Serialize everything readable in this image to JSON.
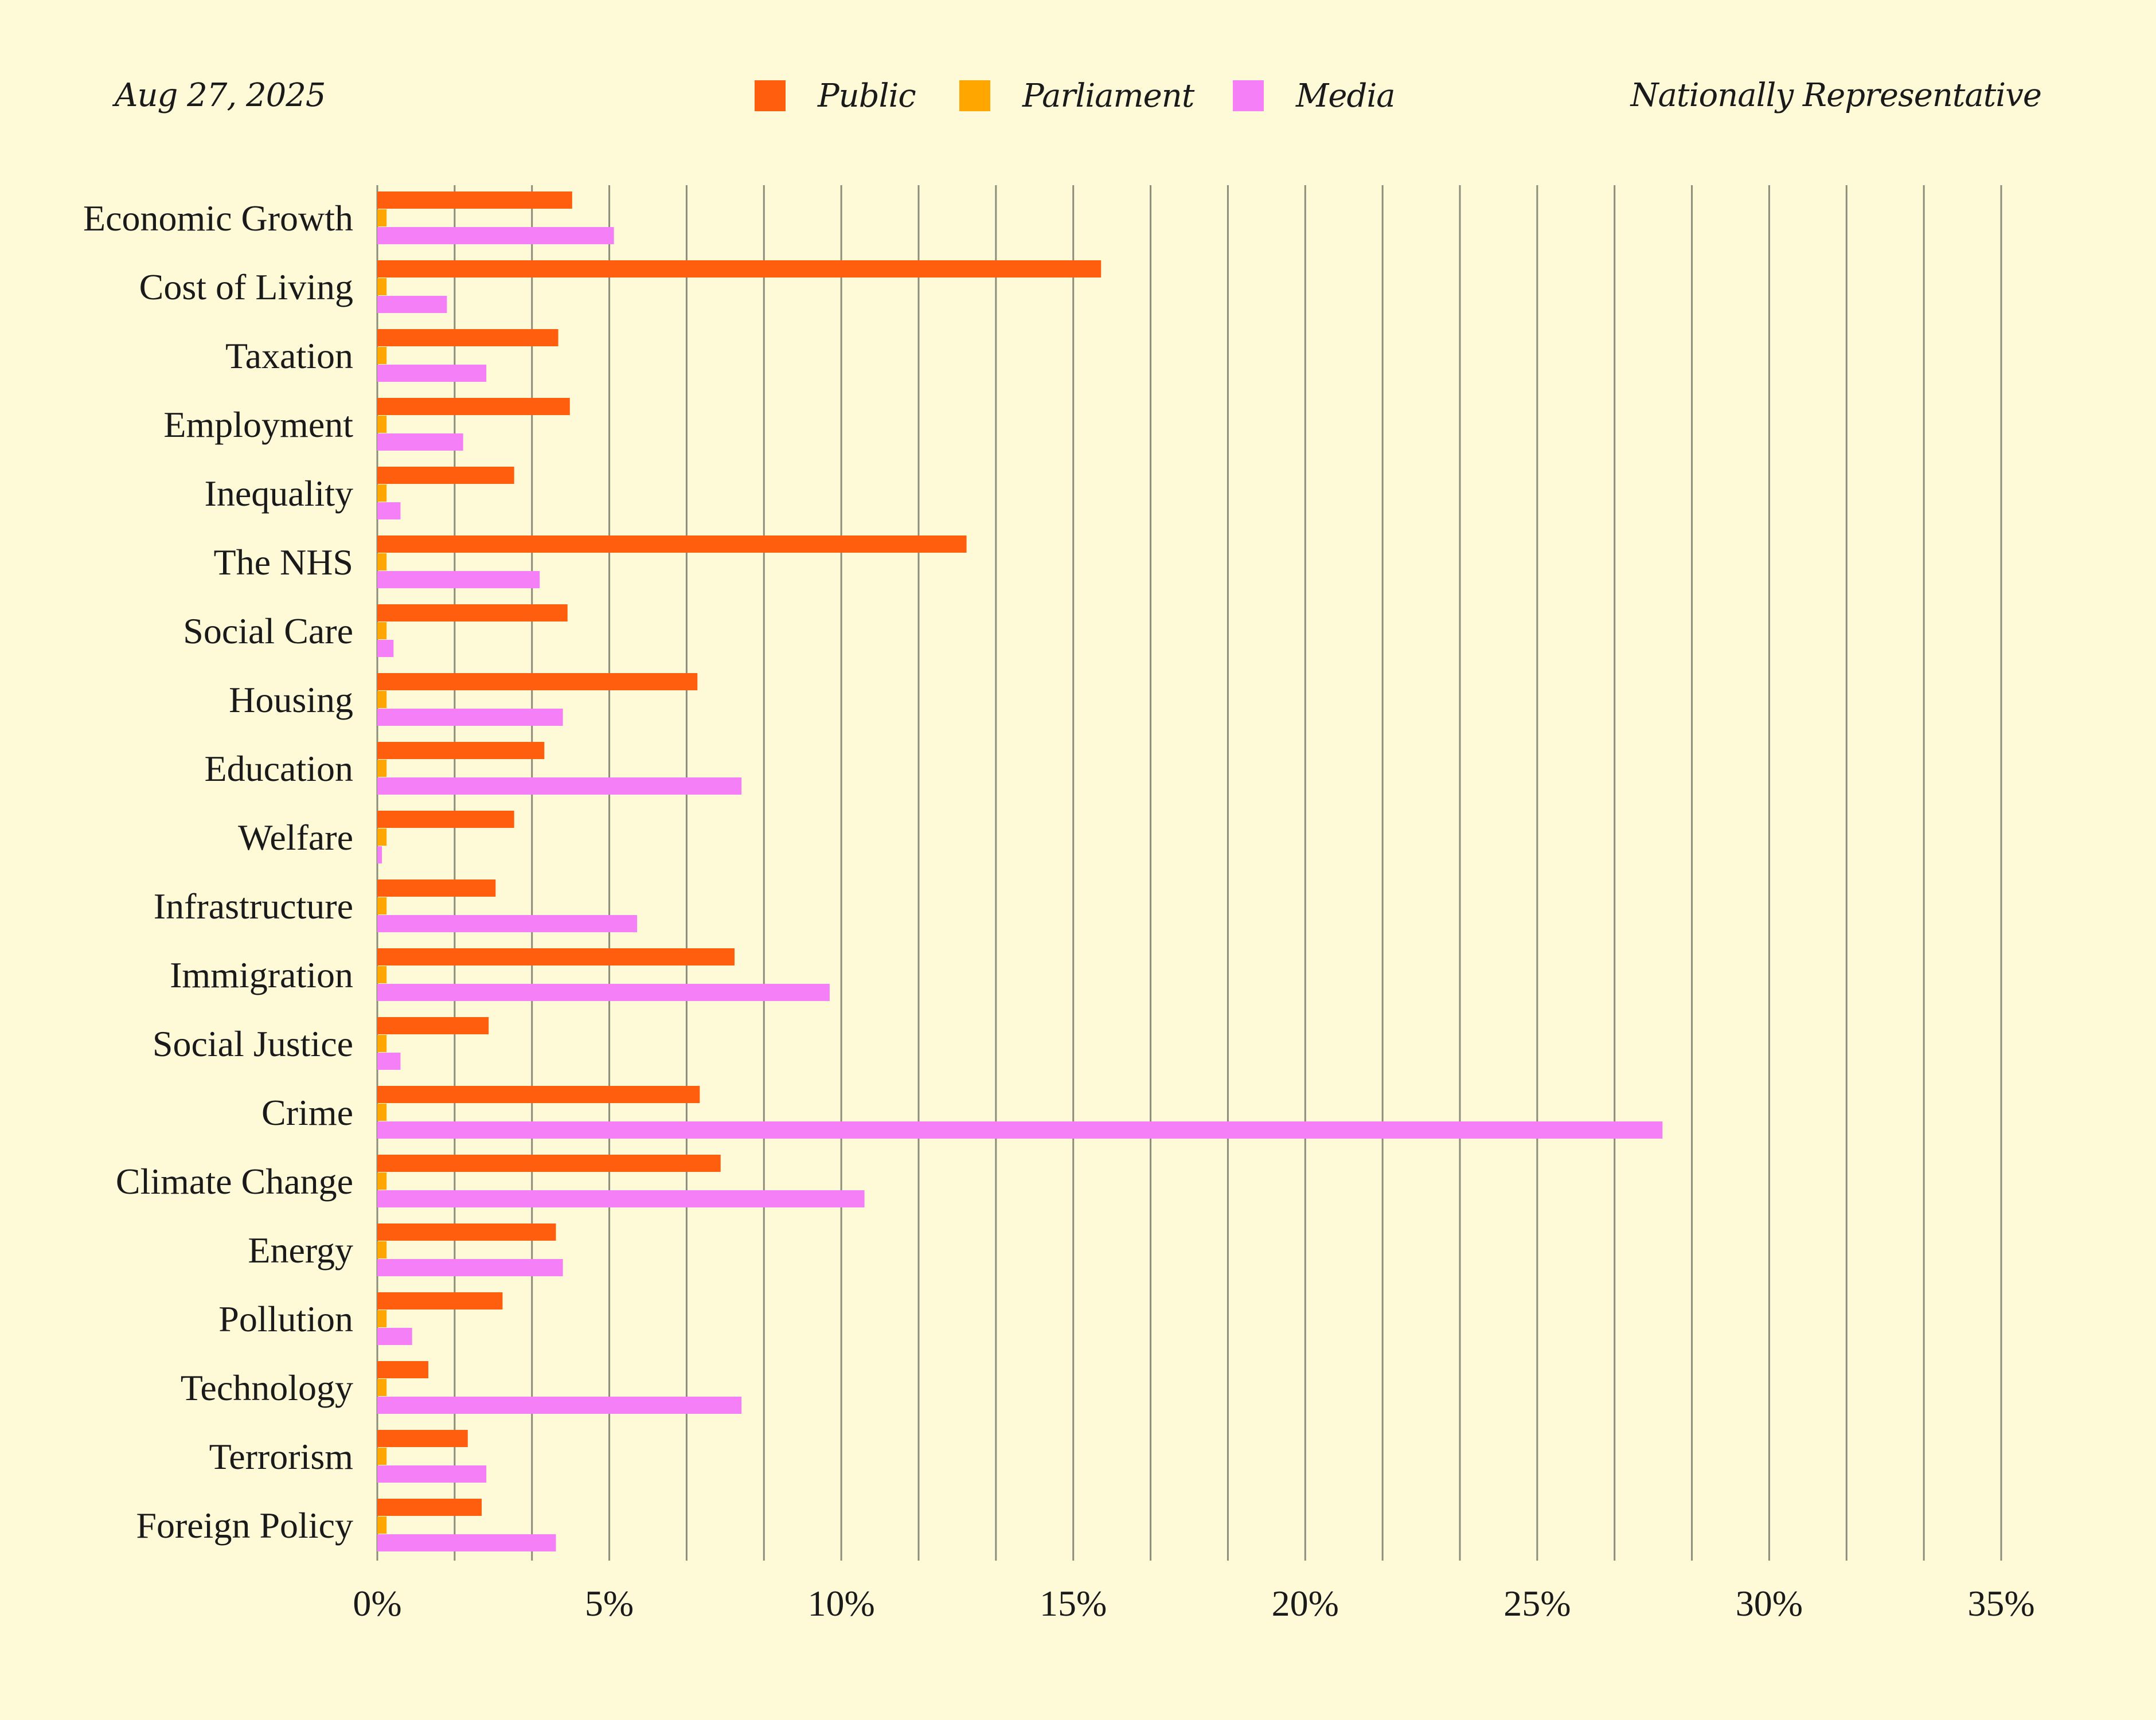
{
  "header": {
    "date": "Aug 27, 2025",
    "subtitle": "Nationally Representative"
  },
  "legend": [
    {
      "name": "Public",
      "color": "#ff5e0e"
    },
    {
      "name": "Parliament",
      "color": "#ffa600"
    },
    {
      "name": "Media",
      "color": "#f57ff7"
    }
  ],
  "chart_data": {
    "type": "bar",
    "orientation": "horizontal",
    "title": "",
    "xlabel": "",
    "ylabel": "",
    "xlim": [
      0,
      35
    ],
    "x_ticks": [
      0,
      5,
      10,
      15,
      20,
      25,
      30,
      35
    ],
    "x_tick_labels": [
      "0%",
      "5%",
      "10%",
      "15%",
      "20%",
      "25%",
      "30%",
      "35%"
    ],
    "grid": "vertical lines at 5/3% intervals",
    "legend_position": "top-center",
    "categories": [
      "Economic Growth",
      "Cost of Living",
      "Taxation",
      "Employment",
      "Inequality",
      "The NHS",
      "Social Care",
      "Housing",
      "Education",
      "Welfare",
      "Infrastructure",
      "Immigration",
      "Social Justice",
      "Crime",
      "Climate Change",
      "Energy",
      "Pollution",
      "Technology",
      "Terrorism",
      "Foreign Policy"
    ],
    "series": [
      {
        "name": "Public",
        "color": "#ff5e0e",
        "values": [
          4.2,
          15.6,
          3.9,
          4.15,
          2.95,
          12.7,
          4.1,
          6.9,
          3.6,
          2.95,
          2.55,
          7.7,
          2.4,
          6.95,
          7.4,
          3.85,
          2.7,
          1.1,
          1.95,
          2.25
        ]
      },
      {
        "name": "Parliament",
        "color": "#ffa600",
        "values": [
          0.2,
          0.2,
          0.2,
          0.2,
          0.2,
          0.2,
          0.2,
          0.2,
          0.2,
          0.2,
          0.2,
          0.2,
          0.2,
          0.2,
          0.2,
          0.2,
          0.2,
          0.2,
          0.2,
          0.2
        ]
      },
      {
        "name": "Media",
        "color": "#f57ff7",
        "values": [
          5.1,
          1.5,
          2.35,
          1.85,
          0.5,
          3.5,
          0.35,
          4.0,
          7.85,
          0.1,
          5.6,
          9.75,
          0.5,
          27.7,
          10.5,
          4.0,
          0.75,
          7.85,
          2.35,
          3.85
        ]
      }
    ]
  }
}
